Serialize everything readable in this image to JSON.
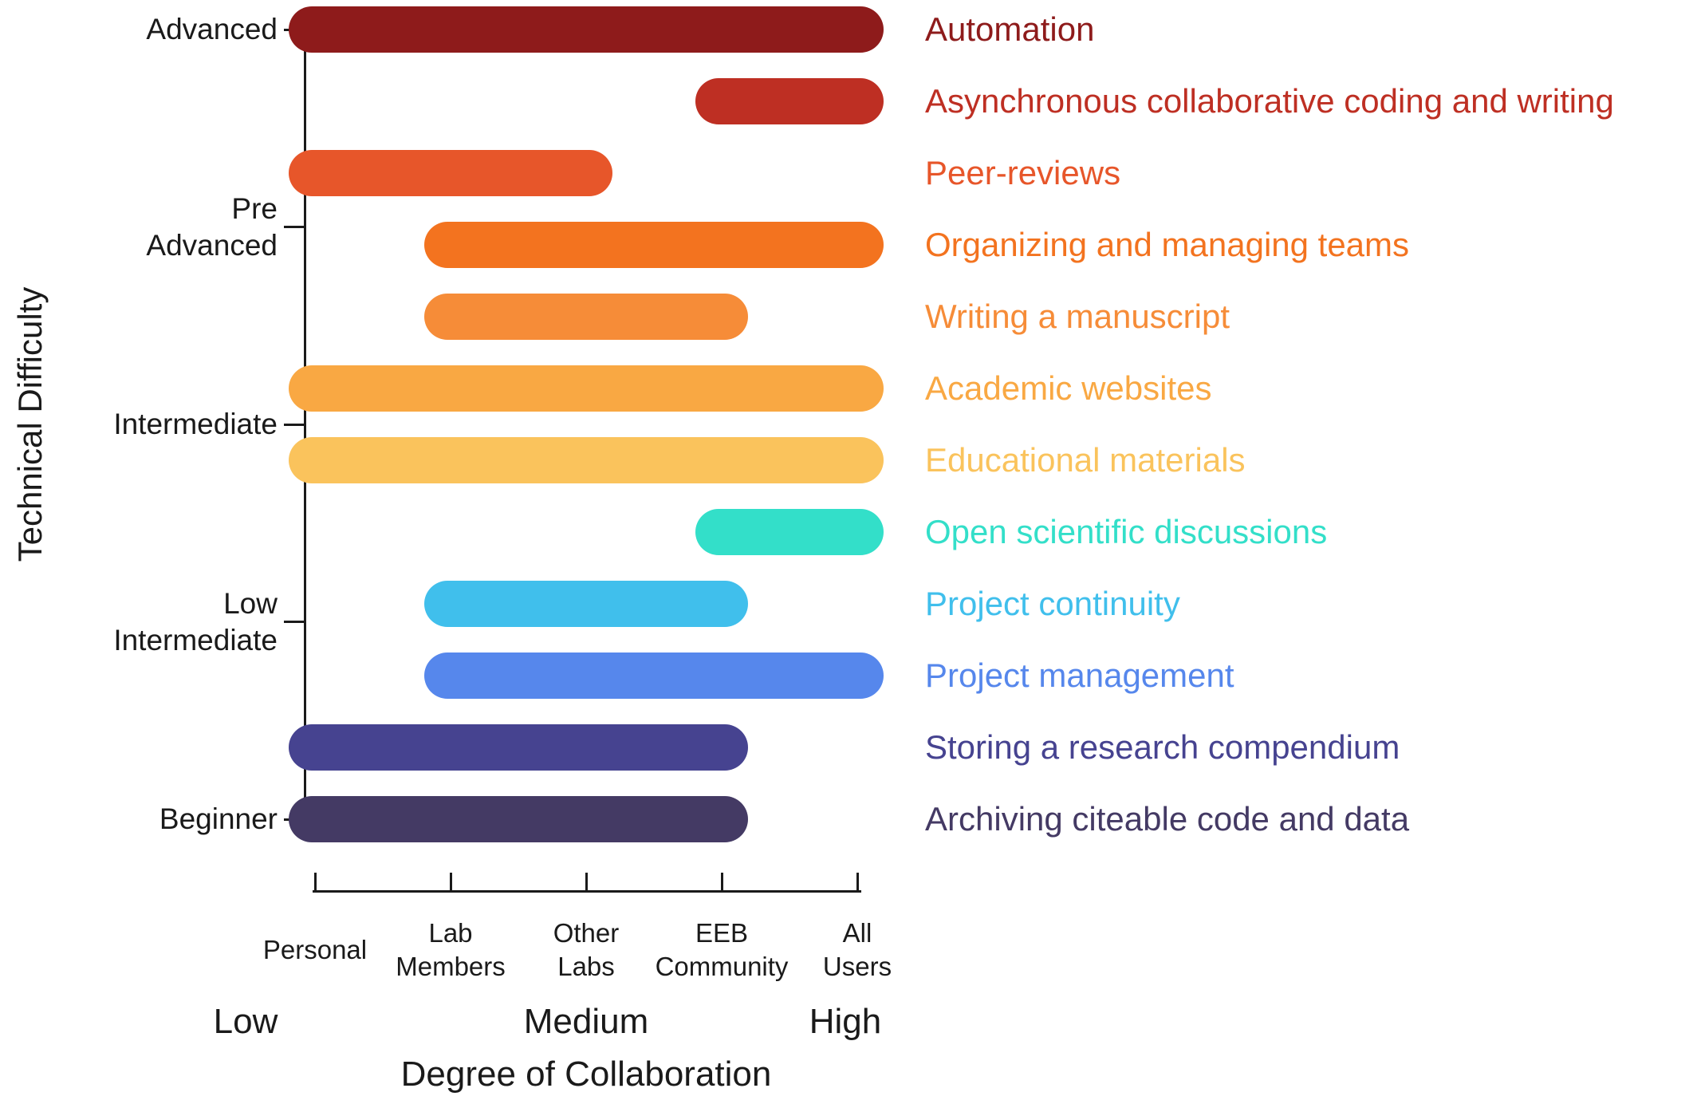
{
  "figure": {
    "background": "#ffffff",
    "text_color": "#1a1a1a"
  },
  "chart_data": {
    "type": "bar",
    "variant": "horizontal-range-bars",
    "title": "",
    "xlabel": "Degree of Collaboration",
    "ylabel": "Technical Difficulty",
    "grid": false,
    "legend": "none (labels beside bars)",
    "x_axis": {
      "categories": [
        {
          "lines": [
            "Personal"
          ]
        },
        {
          "lines": [
            "Lab",
            "Members"
          ]
        },
        {
          "lines": [
            "Other",
            "Labs"
          ]
        },
        {
          "lines": [
            "EEB",
            "Community"
          ]
        },
        {
          "lines": [
            "All",
            "Users"
          ]
        }
      ],
      "intensity_labels": [
        "Low",
        "Medium",
        "High"
      ]
    },
    "y_axis": {
      "tick_labels": [
        {
          "lines": [
            "Advanced"
          ]
        },
        {
          "lines": [
            "Pre",
            "Advanced"
          ]
        },
        {
          "lines": [
            "Intermediate"
          ]
        },
        {
          "lines": [
            "Low",
            "Intermediate"
          ]
        },
        {
          "lines": [
            "Beginner"
          ]
        }
      ],
      "order": "Advanced (top) to Beginner (bottom)"
    },
    "items": [
      {
        "name": "Automation",
        "color": "#8E1B1B",
        "row": 0,
        "collab_start": 0,
        "collab_end": 4,
        "collab_range": "Personal - All Users"
      },
      {
        "name": "Asynchronous collaborative coding and writing",
        "color": "#BE2F23",
        "row": 1,
        "collab_start": 3,
        "collab_end": 4,
        "collab_range": "EEB Community - All Users"
      },
      {
        "name": "Peer-reviews",
        "color": "#E7562A",
        "row": 2,
        "collab_start": 0,
        "collab_end": 2,
        "collab_range": "Personal - Other Labs"
      },
      {
        "name": "Organizing and managing teams",
        "color": "#F3731F",
        "row": 3,
        "collab_start": 1,
        "collab_end": 4,
        "collab_range": "Lab Members - All Users"
      },
      {
        "name": "Writing a manuscript",
        "color": "#F68C38",
        "row": 4,
        "collab_start": 1,
        "collab_end": 3,
        "collab_range": "Lab Members - EEB Community"
      },
      {
        "name": "Academic websites",
        "color": "#F9A843",
        "row": 5,
        "collab_start": 0,
        "collab_end": 4,
        "collab_range": "Personal - All Users"
      },
      {
        "name": "Educational materials",
        "color": "#FAC35C",
        "row": 6,
        "collab_start": 0,
        "collab_end": 4,
        "collab_range": "Personal - All Users"
      },
      {
        "name": "Open scientific discussions",
        "color": "#33DFC9",
        "row": 7,
        "collab_start": 3,
        "collab_end": 4,
        "collab_range": "EEB Community - All Users"
      },
      {
        "name": "Project continuity",
        "color": "#40BFEC",
        "row": 8,
        "collab_start": 1,
        "collab_end": 3,
        "collab_range": "Lab Members - EEB Community"
      },
      {
        "name": "Project management",
        "color": "#5687EC",
        "row": 9,
        "collab_start": 1,
        "collab_end": 4,
        "collab_range": "Lab Members - All Users"
      },
      {
        "name": "Storing a research compendium",
        "color": "#464390",
        "row": 10,
        "collab_start": 0,
        "collab_end": 3,
        "collab_range": "Personal - EEB Community"
      },
      {
        "name": "Archiving citeable code and data",
        "color": "#443A64",
        "row": 11,
        "collab_start": 0,
        "collab_end": 3,
        "collab_range": "Personal - EEB Community"
      }
    ]
  }
}
